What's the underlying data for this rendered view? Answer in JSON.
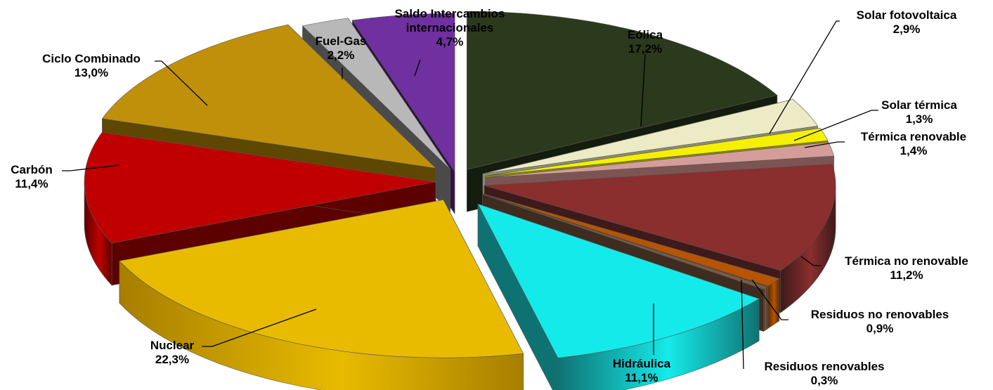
{
  "chart_data": {
    "type": "pie",
    "style": "3d-exploded",
    "unit": "%",
    "slices": [
      {
        "name": "Eólica",
        "label": "17,2%",
        "value": 17.2,
        "color": "#2b3a1c",
        "dark": "#141c0d"
      },
      {
        "name": "Solar fotovoltaica",
        "label": "2,9%",
        "value": 2.9,
        "color": "#ecebc6",
        "dark": "#8e8d6e"
      },
      {
        "name": "Solar térmica",
        "label": "1,3%",
        "value": 1.3,
        "color": "#f4f000",
        "dark": "#8e8a00"
      },
      {
        "name": "Térmica renovable",
        "label": "1,4%",
        "value": 1.4,
        "color": "#d49d9a",
        "dark": "#7c5553"
      },
      {
        "name": "Térmica no renovable",
        "label": "11,2%",
        "value": 11.2,
        "color": "#8a2e2e",
        "dark": "#3e1a1a"
      },
      {
        "name": "Residuos no renovables",
        "label": "0,9%",
        "value": 0.9,
        "color": "#b65400",
        "dark": "#5c2b00"
      },
      {
        "name": "Residuos renovables",
        "label": "0,3%",
        "value": 0.3,
        "color": "#7a5a44",
        "dark": "#3e2c20"
      },
      {
        "name": "Hidráulica",
        "label": "11,1%",
        "value": 11.1,
        "color": "#15eaea",
        "dark": "#0f7272"
      },
      {
        "name": "Nuclear",
        "label": "22,3%",
        "value": 22.3,
        "color": "#e8bb00",
        "dark": "#a77e00"
      },
      {
        "name": "Carbón",
        "label": "11,4%",
        "value": 11.4,
        "color": "#c00000",
        "dark": "#5c0000"
      },
      {
        "name": "Ciclo Combinado",
        "label": "13,0%",
        "value": 13.0,
        "color": "#c0900a",
        "dark": "#5e4700"
      },
      {
        "name": "Fuel-Gas",
        "label": "2,2%",
        "value": 2.2,
        "color": "#b8b8b8",
        "dark": "#4a4a4a"
      },
      {
        "name": "Saldo Intercambios internacionales",
        "label": "4,7%",
        "value": 4.7,
        "color": "#7030a0",
        "dark": "#301244"
      }
    ]
  },
  "labels": [
    {
      "lines": [
        "Eólica",
        "17,2%"
      ]
    },
    {
      "lines": [
        "Solar fotovoltaica",
        "2,9%"
      ]
    },
    {
      "lines": [
        "Solar térmica",
        "1,3%"
      ]
    },
    {
      "lines": [
        "Térmica renovable",
        "1,4%"
      ]
    },
    {
      "lines": [
        "Térmica no renovable",
        "11,2%"
      ]
    },
    {
      "lines": [
        "Residuos no renovables",
        "0,9%"
      ]
    },
    {
      "lines": [
        "Residuos renovables",
        "0,3%"
      ]
    },
    {
      "lines": [
        "Hidráulica",
        "11,1%"
      ]
    },
    {
      "lines": [
        "Nuclear",
        "22,3%"
      ]
    },
    {
      "lines": [
        "Carbón",
        "11,4%"
      ]
    },
    {
      "lines": [
        "Ciclo Combinado",
        "13,0%"
      ]
    },
    {
      "lines": [
        "Fuel-Gas",
        "2,2%"
      ]
    },
    {
      "lines": [
        "Saldo Intercambios",
        "internacionales",
        "4,7%"
      ]
    }
  ]
}
